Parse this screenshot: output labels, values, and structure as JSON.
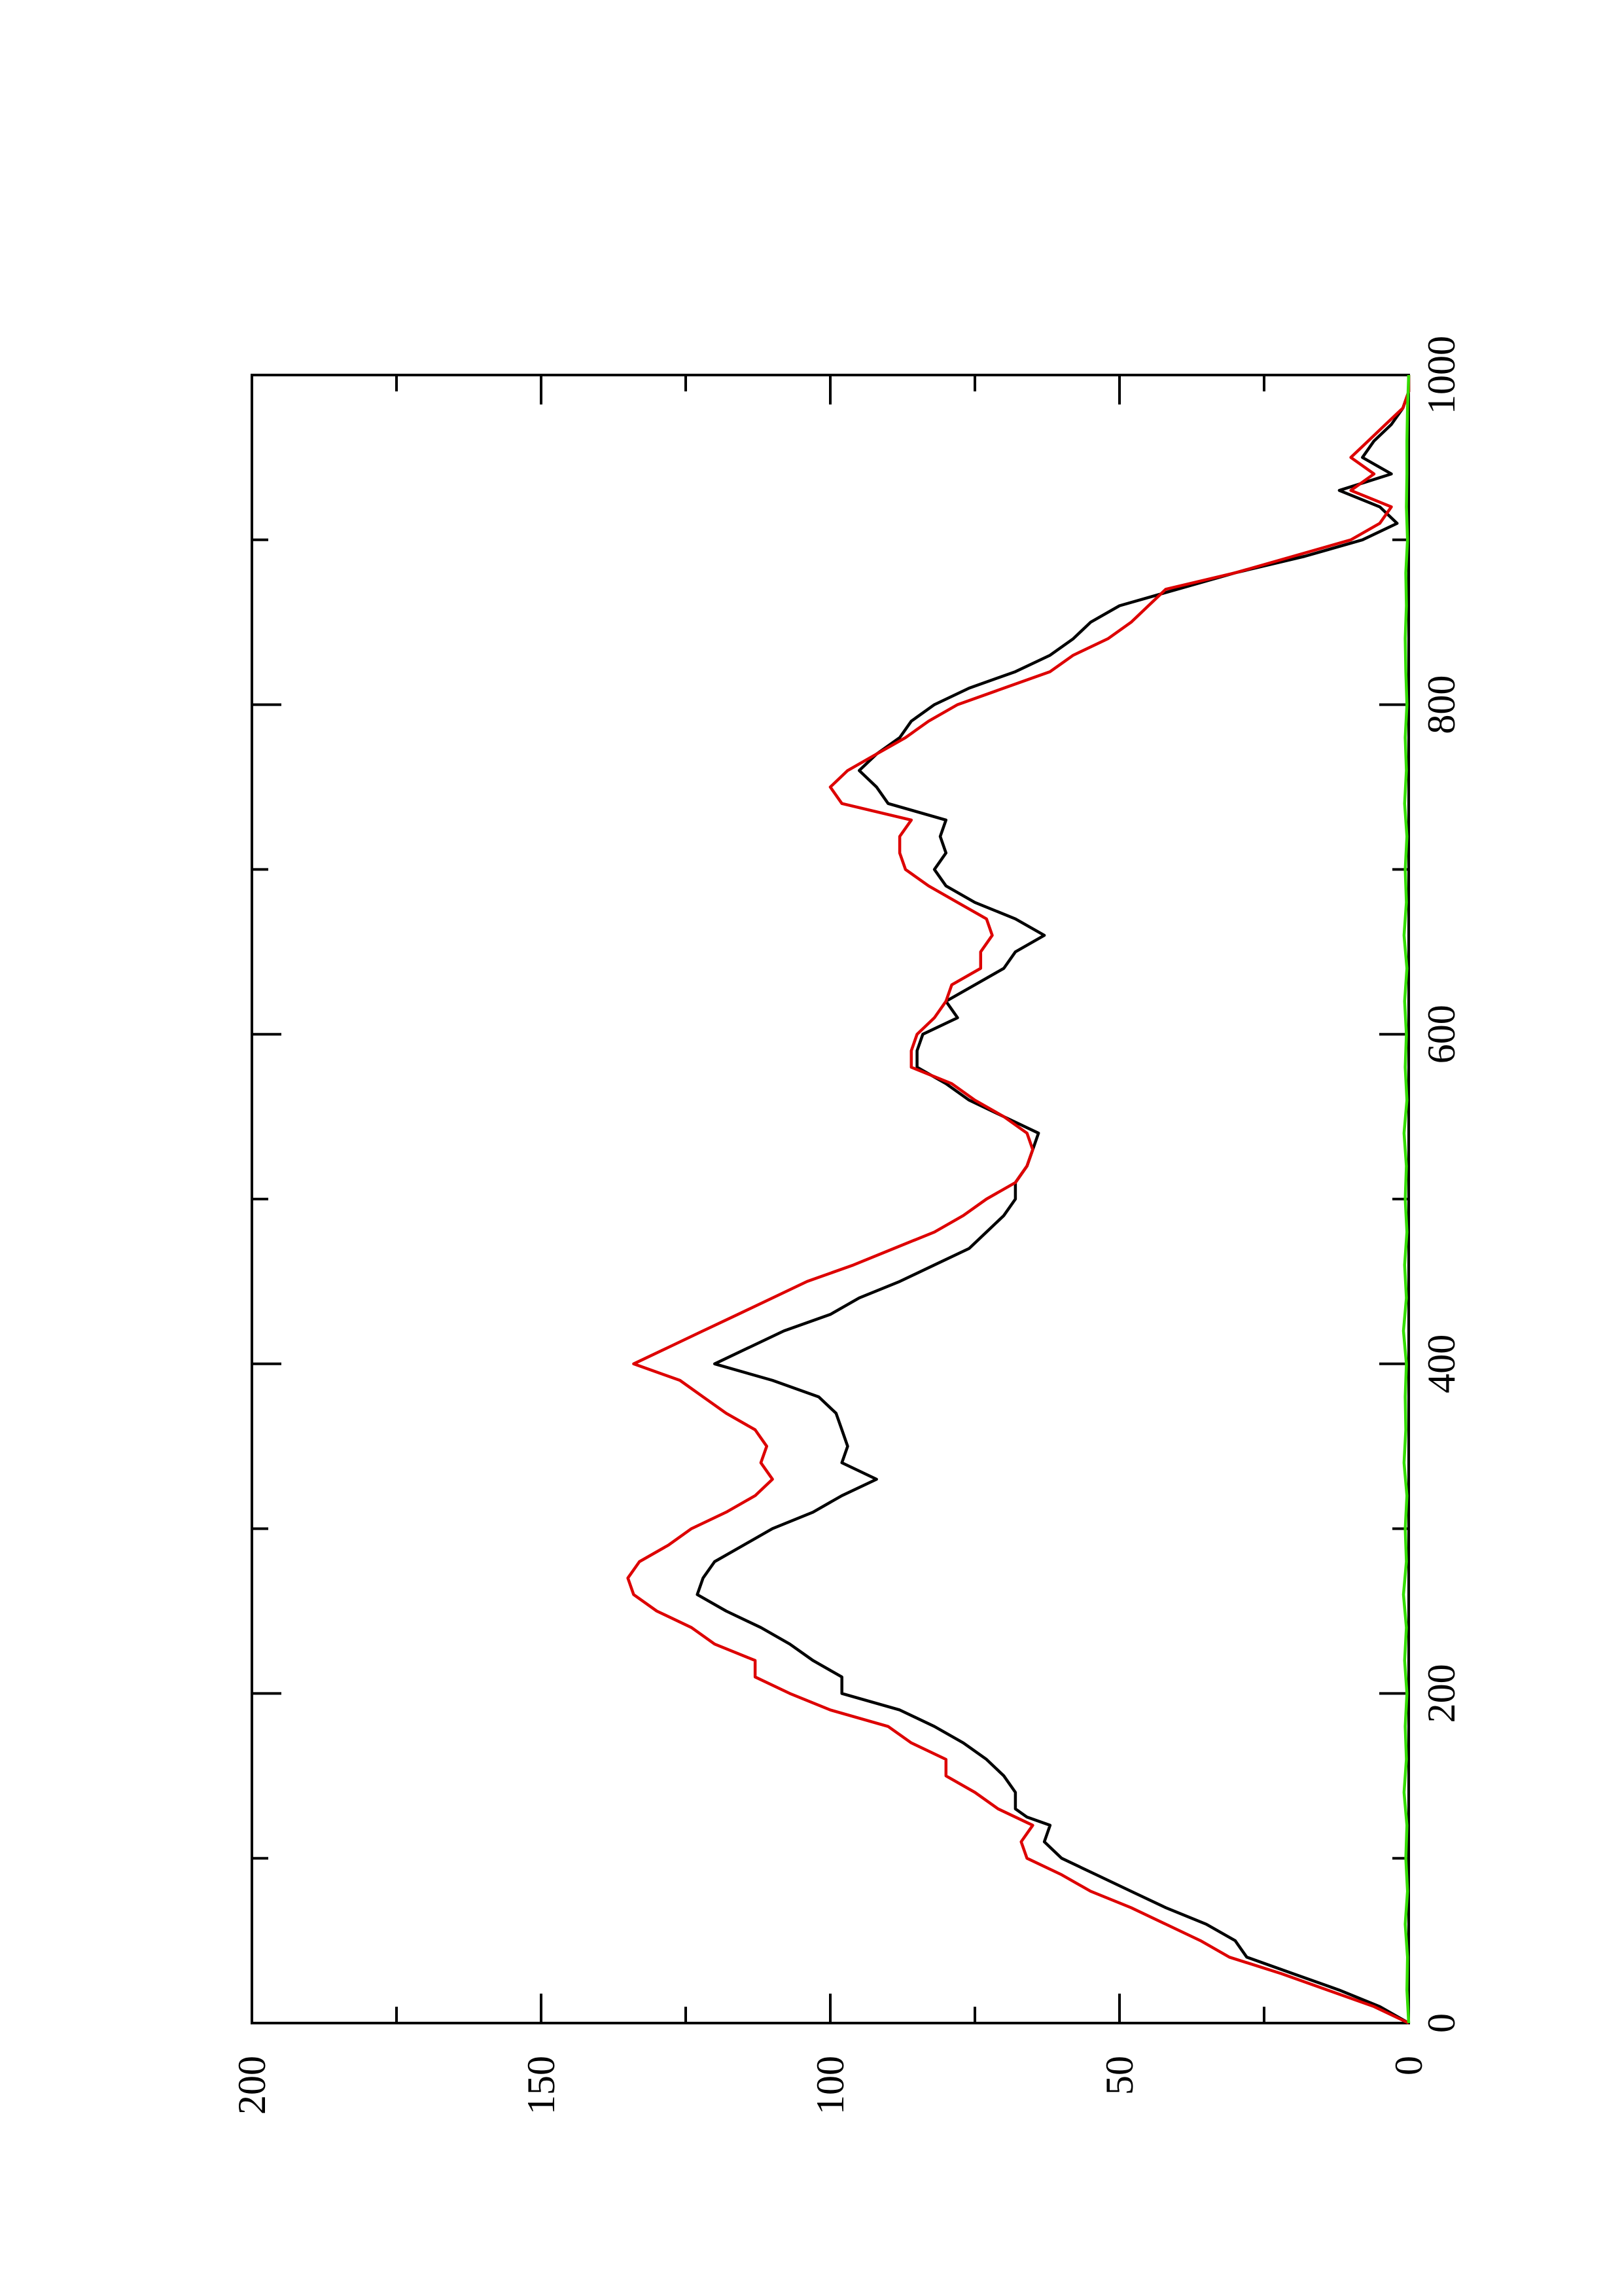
{
  "chart_data": {
    "type": "line",
    "title": "",
    "xlabel": "",
    "ylabel": "",
    "orientation": "rotated-90-counterclockwise",
    "xlim": [
      0,
      1000
    ],
    "ylim": [
      0,
      200
    ],
    "x_ticks": [
      "0",
      "200",
      "400",
      "600",
      "800",
      "1000"
    ],
    "y_ticks": [
      "0",
      "50",
      "100",
      "150",
      "200"
    ],
    "grid": false,
    "legend": "none",
    "series": [
      {
        "color": "#000000",
        "points": [
          [
            0,
            0
          ],
          [
            10,
            5
          ],
          [
            20,
            12
          ],
          [
            30,
            20
          ],
          [
            40,
            28
          ],
          [
            50,
            30
          ],
          [
            60,
            35
          ],
          [
            70,
            42
          ],
          [
            80,
            48
          ],
          [
            90,
            54
          ],
          [
            100,
            60
          ],
          [
            110,
            63
          ],
          [
            120,
            62
          ],
          [
            125,
            66
          ],
          [
            130,
            68
          ],
          [
            140,
            68
          ],
          [
            150,
            70
          ],
          [
            160,
            73
          ],
          [
            170,
            77
          ],
          [
            180,
            82
          ],
          [
            190,
            88
          ],
          [
            200,
            98
          ],
          [
            210,
            98
          ],
          [
            220,
            103
          ],
          [
            230,
            107
          ],
          [
            240,
            112
          ],
          [
            250,
            118
          ],
          [
            260,
            123
          ],
          [
            270,
            122
          ],
          [
            280,
            120
          ],
          [
            290,
            115
          ],
          [
            300,
            110
          ],
          [
            310,
            103
          ],
          [
            320,
            98
          ],
          [
            330,
            92
          ],
          [
            340,
            98
          ],
          [
            350,
            97
          ],
          [
            360,
            98
          ],
          [
            370,
            99
          ],
          [
            380,
            102
          ],
          [
            390,
            110
          ],
          [
            400,
            120
          ],
          [
            410,
            114
          ],
          [
            420,
            108
          ],
          [
            430,
            100
          ],
          [
            440,
            95
          ],
          [
            450,
            88
          ],
          [
            460,
            82
          ],
          [
            470,
            76
          ],
          [
            480,
            73
          ],
          [
            490,
            70
          ],
          [
            500,
            68
          ],
          [
            510,
            68
          ],
          [
            520,
            66
          ],
          [
            530,
            65
          ],
          [
            540,
            64
          ],
          [
            550,
            70
          ],
          [
            560,
            76
          ],
          [
            570,
            80
          ],
          [
            580,
            85
          ],
          [
            590,
            85
          ],
          [
            600,
            84
          ],
          [
            610,
            78
          ],
          [
            620,
            80
          ],
          [
            630,
            75
          ],
          [
            640,
            70
          ],
          [
            650,
            68
          ],
          [
            660,
            63
          ],
          [
            670,
            68
          ],
          [
            680,
            75
          ],
          [
            690,
            80
          ],
          [
            700,
            82
          ],
          [
            710,
            80
          ],
          [
            720,
            81
          ],
          [
            730,
            80
          ],
          [
            740,
            90
          ],
          [
            750,
            92
          ],
          [
            760,
            95
          ],
          [
            770,
            92
          ],
          [
            780,
            88
          ],
          [
            790,
            86
          ],
          [
            800,
            82
          ],
          [
            810,
            76
          ],
          [
            820,
            68
          ],
          [
            830,
            62
          ],
          [
            840,
            58
          ],
          [
            850,
            55
          ],
          [
            860,
            50
          ],
          [
            870,
            40
          ],
          [
            880,
            30
          ],
          [
            890,
            18
          ],
          [
            900,
            8
          ],
          [
            910,
            2
          ],
          [
            920,
            5
          ],
          [
            930,
            12
          ],
          [
            940,
            3
          ],
          [
            950,
            8
          ],
          [
            960,
            6
          ],
          [
            970,
            3
          ],
          [
            980,
            1
          ],
          [
            990,
            0
          ],
          [
            1000,
            0
          ]
        ]
      },
      {
        "color": "#dd0000",
        "points": [
          [
            0,
            0
          ],
          [
            10,
            6
          ],
          [
            20,
            14
          ],
          [
            30,
            22
          ],
          [
            40,
            31
          ],
          [
            50,
            36
          ],
          [
            60,
            42
          ],
          [
            70,
            48
          ],
          [
            80,
            55
          ],
          [
            90,
            60
          ],
          [
            100,
            66
          ],
          [
            110,
            67
          ],
          [
            120,
            65
          ],
          [
            130,
            71
          ],
          [
            140,
            75
          ],
          [
            150,
            80
          ],
          [
            160,
            80
          ],
          [
            170,
            86
          ],
          [
            180,
            90
          ],
          [
            190,
            100
          ],
          [
            200,
            107
          ],
          [
            210,
            113
          ],
          [
            220,
            113
          ],
          [
            230,
            120
          ],
          [
            240,
            124
          ],
          [
            250,
            130
          ],
          [
            260,
            134
          ],
          [
            270,
            135
          ],
          [
            280,
            133
          ],
          [
            290,
            128
          ],
          [
            300,
            124
          ],
          [
            310,
            118
          ],
          [
            320,
            113
          ],
          [
            330,
            110
          ],
          [
            340,
            112
          ],
          [
            350,
            111
          ],
          [
            360,
            113
          ],
          [
            370,
            118
          ],
          [
            380,
            122
          ],
          [
            390,
            126
          ],
          [
            400,
            134
          ],
          [
            410,
            128
          ],
          [
            420,
            122
          ],
          [
            430,
            116
          ],
          [
            440,
            110
          ],
          [
            450,
            104
          ],
          [
            460,
            96
          ],
          [
            470,
            89
          ],
          [
            480,
            82
          ],
          [
            490,
            77
          ],
          [
            500,
            73
          ],
          [
            510,
            68
          ],
          [
            520,
            66
          ],
          [
            530,
            65
          ],
          [
            540,
            66
          ],
          [
            550,
            70
          ],
          [
            560,
            75
          ],
          [
            570,
            79
          ],
          [
            580,
            86
          ],
          [
            590,
            86
          ],
          [
            600,
            85
          ],
          [
            610,
            82
          ],
          [
            620,
            80
          ],
          [
            630,
            79
          ],
          [
            640,
            74
          ],
          [
            650,
            74
          ],
          [
            660,
            72
          ],
          [
            670,
            73
          ],
          [
            680,
            78
          ],
          [
            690,
            83
          ],
          [
            700,
            87
          ],
          [
            710,
            88
          ],
          [
            720,
            88
          ],
          [
            730,
            86
          ],
          [
            740,
            98
          ],
          [
            750,
            100
          ],
          [
            760,
            97
          ],
          [
            770,
            92
          ],
          [
            780,
            87
          ],
          [
            790,
            83
          ],
          [
            800,
            78
          ],
          [
            810,
            70
          ],
          [
            820,
            62
          ],
          [
            830,
            58
          ],
          [
            840,
            52
          ],
          [
            850,
            48
          ],
          [
            860,
            45
          ],
          [
            870,
            42
          ],
          [
            880,
            30
          ],
          [
            890,
            20
          ],
          [
            900,
            10
          ],
          [
            910,
            5
          ],
          [
            920,
            3
          ],
          [
            930,
            10
          ],
          [
            940,
            6
          ],
          [
            950,
            10
          ],
          [
            960,
            7
          ],
          [
            970,
            4
          ],
          [
            980,
            1
          ],
          [
            990,
            0
          ],
          [
            1000,
            0
          ]
        ]
      },
      {
        "color": "#33dd00",
        "points": [
          [
            0,
            0
          ],
          [
            20,
            0.3
          ],
          [
            40,
            0.2
          ],
          [
            60,
            0.6
          ],
          [
            80,
            0.2
          ],
          [
            100,
            0.5
          ],
          [
            120,
            0.3
          ],
          [
            140,
            0.8
          ],
          [
            160,
            0.4
          ],
          [
            180,
            0.6
          ],
          [
            200,
            0.3
          ],
          [
            220,
            0.7
          ],
          [
            240,
            0.4
          ],
          [
            260,
            0.9
          ],
          [
            280,
            0.4
          ],
          [
            300,
            0.6
          ],
          [
            320,
            0.3
          ],
          [
            340,
            0.8
          ],
          [
            360,
            0.5
          ],
          [
            380,
            0.6
          ],
          [
            400,
            0.4
          ],
          [
            420,
            0.9
          ],
          [
            440,
            0.4
          ],
          [
            460,
            0.7
          ],
          [
            480,
            0.3
          ],
          [
            500,
            0.6
          ],
          [
            520,
            0.4
          ],
          [
            540,
            0.8
          ],
          [
            560,
            0.3
          ],
          [
            580,
            0.6
          ],
          [
            600,
            0.4
          ],
          [
            620,
            0.7
          ],
          [
            640,
            0.3
          ],
          [
            660,
            0.8
          ],
          [
            680,
            0.4
          ],
          [
            700,
            0.6
          ],
          [
            720,
            0.3
          ],
          [
            740,
            0.7
          ],
          [
            760,
            0.4
          ],
          [
            780,
            0.6
          ],
          [
            800,
            0.3
          ],
          [
            820,
            0.5
          ],
          [
            840,
            0.6
          ],
          [
            860,
            0.4
          ],
          [
            880,
            0.5
          ],
          [
            900,
            0.2
          ],
          [
            920,
            0.4
          ],
          [
            940,
            0.3
          ],
          [
            960,
            0.3
          ],
          [
            980,
            0.2
          ],
          [
            1000,
            0
          ]
        ]
      }
    ]
  }
}
